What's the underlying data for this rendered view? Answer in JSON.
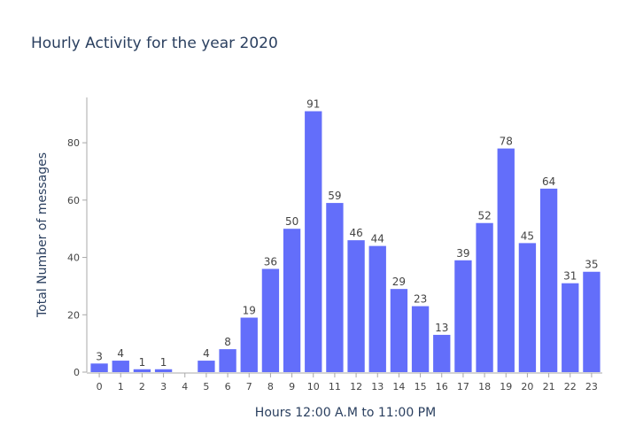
{
  "chart_data": {
    "type": "bar",
    "title": "Hourly Activity for the year 2020",
    "xlabel": "Hours 12:00 A.M to 11:00 PM",
    "ylabel": "Total Number of messages",
    "categories": [
      "0",
      "1",
      "2",
      "3",
      "4",
      "5",
      "6",
      "7",
      "8",
      "9",
      "10",
      "11",
      "12",
      "13",
      "14",
      "15",
      "16",
      "17",
      "18",
      "19",
      "20",
      "21",
      "22",
      "23"
    ],
    "values": [
      3,
      4,
      1,
      1,
      0,
      4,
      8,
      19,
      36,
      50,
      91,
      59,
      46,
      44,
      29,
      23,
      13,
      39,
      52,
      78,
      45,
      64,
      31,
      35
    ],
    "labels": [
      "3",
      "4",
      "1",
      "1",
      "",
      "4",
      "8",
      "19",
      "36",
      "50",
      "91",
      "59",
      "46",
      "44",
      "29",
      "23",
      "13",
      "39",
      "52",
      "78",
      "45",
      "64",
      "31",
      "35"
    ],
    "yticks": [
      0,
      20,
      40,
      60,
      80
    ],
    "ylim": [
      0,
      95.8
    ],
    "grid": false,
    "bar_color": "#636efa",
    "axis_color": "#a8a8a8"
  }
}
